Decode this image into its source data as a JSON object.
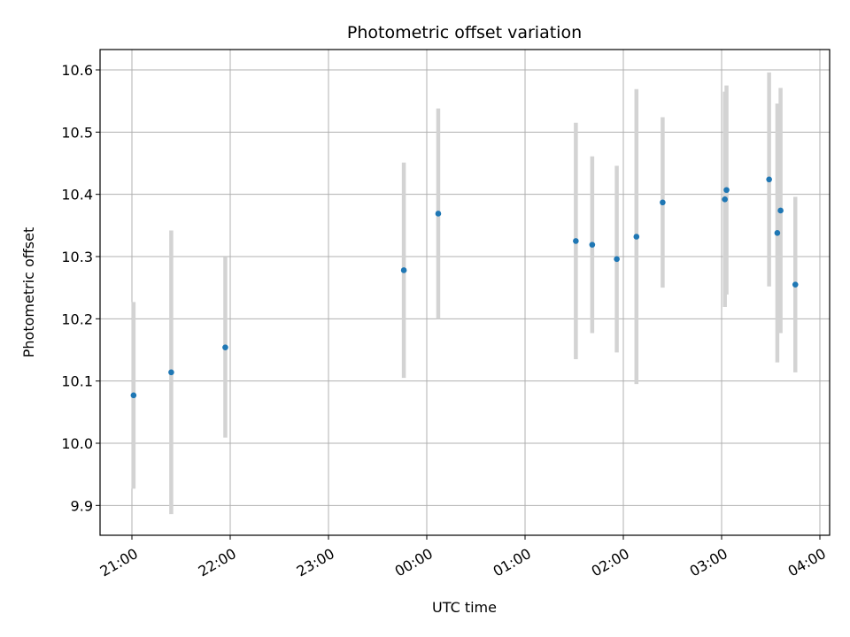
{
  "chart_data": {
    "type": "scatter",
    "title": "Photometric offset variation",
    "xlabel": "UTC time",
    "ylabel": "Photometric offset",
    "x_unit": "minutes after 20:40 UTC",
    "xlim": [
      "20:40",
      "04:05"
    ],
    "ylim": [
      9.85,
      10.63
    ],
    "grid": true,
    "legend": "none",
    "x_ticks": [
      "21:00",
      "22:00",
      "23:00",
      "00:00",
      "01:00",
      "02:00",
      "03:00",
      "04:00"
    ],
    "y_ticks": [
      "9.9",
      "10.0",
      "10.1",
      "10.2",
      "10.3",
      "10.4",
      "10.5",
      "10.6"
    ],
    "colors": {
      "point": "#1f77b4",
      "error_bar": "#d3d3d3",
      "grid": "#b0b0b0"
    },
    "points": [
      {
        "time": "21:01",
        "y": 10.077,
        "yerr": 0.15
      },
      {
        "time": "21:24",
        "y": 10.114,
        "yerr": 0.228
      },
      {
        "time": "21:57",
        "y": 10.154,
        "yerr": 0.145
      },
      {
        "time": "23:46",
        "y": 10.278,
        "yerr": 0.173
      },
      {
        "time": "00:07",
        "y": 10.369,
        "yerr": 0.169
      },
      {
        "time": "01:31",
        "y": 10.325,
        "yerr": 0.19
      },
      {
        "time": "01:41",
        "y": 10.319,
        "yerr": 0.142
      },
      {
        "time": "01:56",
        "y": 10.296,
        "yerr": 0.15
      },
      {
        "time": "02:08",
        "y": 10.332,
        "yerr": 0.237
      },
      {
        "time": "02:24",
        "y": 10.387,
        "yerr": 0.137
      },
      {
        "time": "03:02",
        "y": 10.392,
        "yerr": 0.173
      },
      {
        "time": "03:03",
        "y": 10.407,
        "yerr": 0.168
      },
      {
        "time": "03:29",
        "y": 10.424,
        "yerr": 0.172
      },
      {
        "time": "03:34",
        "y": 10.338,
        "yerr": 0.208
      },
      {
        "time": "03:36",
        "y": 10.374,
        "yerr": 0.197
      },
      {
        "time": "03:45",
        "y": 10.255,
        "yerr": 0.141
      }
    ]
  }
}
